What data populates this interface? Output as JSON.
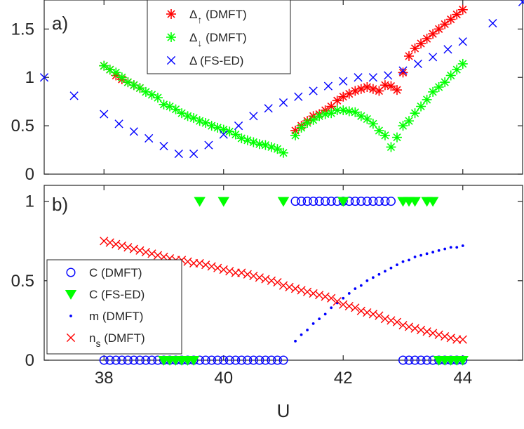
{
  "chart_data": [
    {
      "type": "scatter",
      "panel_label": "a)",
      "xlim": [
        37,
        45
      ],
      "ylim": [
        0,
        1.8
      ],
      "y_ticks": [
        0,
        0.5,
        1,
        1.5
      ],
      "y_tick_labels": [
        "0",
        "0.5",
        "1",
        "1.5"
      ],
      "grid": false,
      "legend_position": "top-center",
      "series": [
        {
          "name": "Δ↑ (DMFT)",
          "legend_main": "Δ",
          "legend_sub": "↑",
          "legend_tail": " (DMFT)",
          "marker": "asterisk",
          "color": "#ff0000",
          "x": [
            38.0,
            38.1,
            38.2,
            38.3,
            38.4,
            38.5,
            38.6,
            41.2,
            41.3,
            41.4,
            41.5,
            41.6,
            41.7,
            41.8,
            41.9,
            42.0,
            42.1,
            42.2,
            42.3,
            42.4,
            42.5,
            42.6,
            42.7,
            42.8,
            42.9,
            43.0,
            43.1,
            43.2,
            43.3,
            43.4,
            43.5,
            43.6,
            43.7,
            43.8,
            43.9,
            44.0
          ],
          "y": [
            1.12,
            1.08,
            1.02,
            0.98,
            0.95,
            0.92,
            0.89,
            0.45,
            0.5,
            0.55,
            0.6,
            0.62,
            0.66,
            0.7,
            0.76,
            0.8,
            0.83,
            0.86,
            0.88,
            0.9,
            0.88,
            0.86,
            0.92,
            0.91,
            0.87,
            1.05,
            1.22,
            1.3,
            1.35,
            1.4,
            1.45,
            1.5,
            1.55,
            1.6,
            1.65,
            1.7
          ]
        },
        {
          "name": "Δ↓ (DMFT)",
          "legend_main": "Δ",
          "legend_sub": "↓",
          "legend_tail": " (DMFT)",
          "marker": "asterisk",
          "color": "#00ff00",
          "x": [
            38.0,
            38.1,
            38.2,
            38.3,
            38.4,
            38.5,
            38.6,
            38.7,
            38.8,
            38.9,
            39.0,
            39.1,
            39.2,
            39.3,
            39.4,
            39.5,
            39.6,
            39.7,
            39.8,
            39.9,
            40.0,
            40.1,
            40.2,
            40.3,
            40.4,
            40.5,
            40.6,
            40.7,
            40.8,
            40.9,
            41.0,
            41.2,
            41.3,
            41.4,
            41.5,
            41.6,
            41.7,
            41.8,
            41.9,
            42.0,
            42.1,
            42.2,
            42.3,
            42.4,
            42.5,
            42.6,
            42.7,
            42.8,
            42.9,
            43.0,
            43.1,
            43.2,
            43.3,
            43.4,
            43.5,
            43.6,
            43.7,
            43.8,
            43.9,
            44.0
          ],
          "y": [
            1.12,
            1.08,
            1.05,
            1.0,
            0.95,
            0.92,
            0.89,
            0.85,
            0.82,
            0.79,
            0.72,
            0.7,
            0.67,
            0.63,
            0.6,
            0.58,
            0.55,
            0.53,
            0.5,
            0.48,
            0.46,
            0.44,
            0.41,
            0.37,
            0.35,
            0.33,
            0.31,
            0.3,
            0.28,
            0.26,
            0.22,
            0.4,
            0.48,
            0.53,
            0.56,
            0.6,
            0.62,
            0.63,
            0.66,
            0.66,
            0.65,
            0.64,
            0.6,
            0.57,
            0.52,
            0.45,
            0.4,
            0.28,
            0.38,
            0.5,
            0.55,
            0.63,
            0.7,
            0.77,
            0.85,
            0.9,
            0.95,
            1.02,
            1.08,
            1.14
          ]
        },
        {
          "name": "Δ (FS-ED)",
          "legend_main": "Δ",
          "legend_sub": "",
          "legend_tail": " (FS-ED)",
          "marker": "x",
          "color": "#0000ff",
          "x": [
            37.0,
            37.5,
            38.0,
            38.25,
            38.5,
            38.75,
            39.0,
            39.25,
            39.5,
            39.75,
            40.0,
            40.25,
            40.5,
            40.75,
            41.0,
            41.25,
            41.5,
            41.75,
            42.0,
            42.25,
            42.5,
            42.75,
            43.0,
            43.25,
            43.5,
            43.75,
            44.0,
            44.5,
            45.0
          ],
          "y": [
            1.0,
            0.81,
            0.62,
            0.52,
            0.44,
            0.37,
            0.29,
            0.21,
            0.21,
            0.3,
            0.41,
            0.5,
            0.6,
            0.68,
            0.74,
            0.8,
            0.86,
            0.91,
            0.96,
            1.0,
            1.0,
            1.02,
            1.07,
            1.14,
            1.21,
            1.29,
            1.37,
            1.56,
            1.78
          ]
        }
      ]
    },
    {
      "type": "scatter",
      "panel_label": "b)",
      "xlim": [
        37,
        45
      ],
      "ylim": [
        0,
        1.1
      ],
      "y_ticks": [
        0,
        0.5,
        1
      ],
      "y_tick_labels": [
        "0",
        "0.5",
        "1"
      ],
      "x_ticks": [
        38,
        40,
        42,
        44
      ],
      "x_tick_labels": [
        "38",
        "40",
        "42",
        "44"
      ],
      "xlabel": "U",
      "grid": false,
      "legend_position": "left",
      "series": [
        {
          "name": "C (DMFT)",
          "legend_main": "C",
          "legend_sub": "",
          "legend_tail": " (DMFT)",
          "marker": "circle",
          "color": "#0000ff",
          "x": [
            38.0,
            38.1,
            38.2,
            38.3,
            38.4,
            38.5,
            38.6,
            38.7,
            38.8,
            38.9,
            39.0,
            39.1,
            39.2,
            39.3,
            39.4,
            39.5,
            39.6,
            39.7,
            39.8,
            39.9,
            40.0,
            40.1,
            40.2,
            40.3,
            40.4,
            40.5,
            40.6,
            40.7,
            40.8,
            40.9,
            41.0,
            41.2,
            41.3,
            41.4,
            41.5,
            41.6,
            41.7,
            41.8,
            41.9,
            42.0,
            42.1,
            42.2,
            42.3,
            42.4,
            42.5,
            42.6,
            42.7,
            42.8,
            43.0,
            43.1,
            43.2,
            43.3,
            43.4,
            43.5,
            43.6,
            43.7,
            43.8,
            43.9,
            44.0
          ],
          "y": [
            0,
            0,
            0,
            0,
            0,
            0,
            0,
            0,
            0,
            0,
            0,
            0,
            0,
            0,
            0,
            0,
            0,
            0,
            0,
            0,
            0,
            0,
            0,
            0,
            0,
            0,
            0,
            0,
            0,
            0,
            0,
            1,
            1,
            1,
            1,
            1,
            1,
            1,
            1,
            1,
            1,
            1,
            1,
            1,
            1,
            1,
            1,
            1,
            0,
            0,
            0,
            0,
            0,
            0,
            0,
            0,
            0,
            0,
            0
          ]
        },
        {
          "name": "C (FS-ED)",
          "legend_main": "C",
          "legend_sub": "",
          "legend_tail": " (FS-ED)",
          "marker": "triangle-down",
          "color": "#00ff00",
          "x": [
            39.0,
            39.1,
            39.2,
            39.3,
            39.4,
            39.5,
            39.6,
            40.0,
            41.0,
            42.0,
            43.0,
            43.1,
            43.2,
            43.4,
            43.5,
            43.6,
            43.7,
            43.8,
            43.9,
            44.0
          ],
          "y": [
            0,
            0,
            0,
            0,
            0,
            0,
            1,
            1,
            1,
            1,
            1,
            1,
            1,
            1,
            1,
            0,
            0,
            0,
            0,
            0
          ]
        },
        {
          "name": "m (DMFT)",
          "legend_main": "m",
          "legend_sub": "",
          "legend_tail": " (DMFT)",
          "marker": "dot",
          "color": "#0000ff",
          "x": [
            41.2,
            41.3,
            41.4,
            41.5,
            41.6,
            41.7,
            41.8,
            41.9,
            42.0,
            42.1,
            42.2,
            42.3,
            42.4,
            42.5,
            42.6,
            42.7,
            42.8,
            42.9,
            43.0,
            43.1,
            43.2,
            43.3,
            43.4,
            43.5,
            43.6,
            43.7,
            43.8,
            43.9,
            44.0
          ],
          "y": [
            0.12,
            0.16,
            0.19,
            0.23,
            0.26,
            0.29,
            0.33,
            0.36,
            0.39,
            0.42,
            0.45,
            0.47,
            0.5,
            0.52,
            0.54,
            0.56,
            0.58,
            0.6,
            0.62,
            0.63,
            0.65,
            0.66,
            0.67,
            0.68,
            0.69,
            0.7,
            0.71,
            0.71,
            0.72
          ]
        },
        {
          "name": "ns (DMFT)",
          "legend_main": "n",
          "legend_sub": "s",
          "legend_tail": " (DMFT)",
          "marker": "x",
          "color": "#ff0000",
          "x": [
            38.0,
            38.1,
            38.2,
            38.3,
            38.4,
            38.5,
            38.6,
            38.7,
            38.8,
            38.9,
            39.0,
            39.1,
            39.2,
            39.3,
            39.4,
            39.5,
            39.6,
            39.7,
            39.8,
            39.9,
            40.0,
            40.1,
            40.2,
            40.3,
            40.4,
            40.5,
            40.6,
            40.7,
            40.8,
            40.9,
            41.0,
            41.1,
            41.2,
            41.3,
            41.4,
            41.5,
            41.6,
            41.7,
            41.8,
            41.9,
            42.0,
            42.1,
            42.2,
            42.3,
            42.4,
            42.5,
            42.6,
            42.7,
            42.8,
            42.9,
            43.0,
            43.1,
            43.2,
            43.3,
            43.4,
            43.5,
            43.6,
            43.7,
            43.8,
            43.9,
            44.0
          ],
          "y": [
            0.75,
            0.74,
            0.73,
            0.72,
            0.71,
            0.7,
            0.69,
            0.68,
            0.67,
            0.66,
            0.65,
            0.64,
            0.63,
            0.63,
            0.62,
            0.61,
            0.61,
            0.6,
            0.59,
            0.58,
            0.57,
            0.56,
            0.55,
            0.55,
            0.54,
            0.53,
            0.52,
            0.51,
            0.5,
            0.49,
            0.47,
            0.46,
            0.45,
            0.44,
            0.43,
            0.42,
            0.41,
            0.4,
            0.39,
            0.37,
            0.35,
            0.34,
            0.33,
            0.31,
            0.3,
            0.29,
            0.28,
            0.26,
            0.25,
            0.24,
            0.22,
            0.21,
            0.2,
            0.19,
            0.18,
            0.17,
            0.16,
            0.15,
            0.14,
            0.13,
            0.13
          ]
        }
      ]
    }
  ]
}
